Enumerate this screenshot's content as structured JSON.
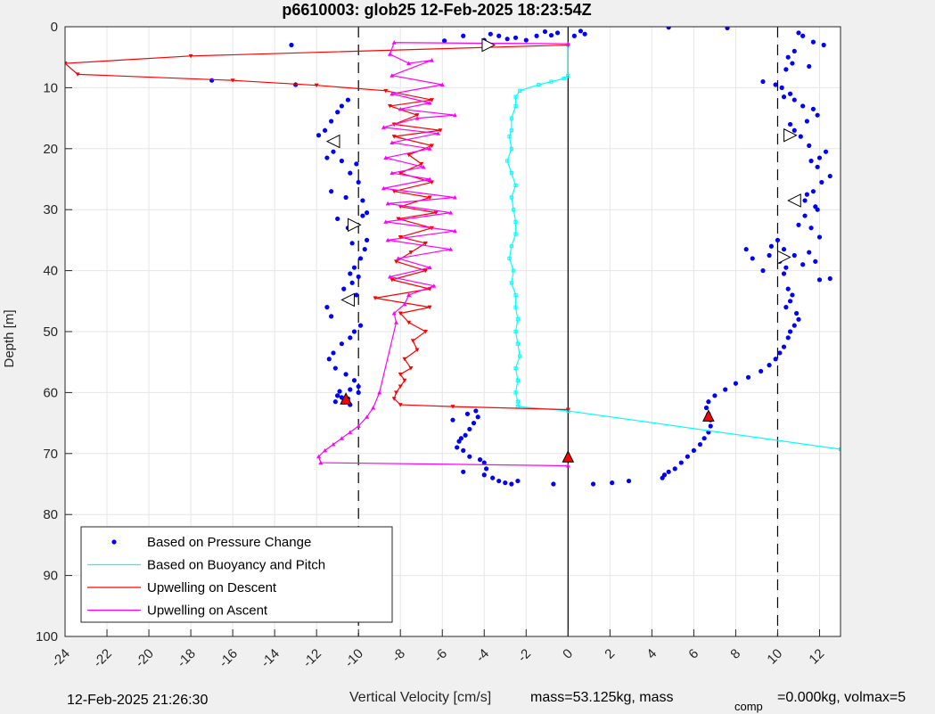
{
  "chart_data": {
    "type": "scatter",
    "title": "p6610003: glob25 12-Feb-2025 18:23:54Z",
    "xlabel": "Vertical Velocity [cm/s]",
    "ylabel": "Depth [m]",
    "xlim": [
      -24,
      13
    ],
    "ylim": [
      0,
      100
    ],
    "y_reversed": true,
    "x_ticks": [
      -24,
      -22,
      -20,
      -18,
      -16,
      -14,
      -12,
      -10,
      -8,
      -6,
      -4,
      -2,
      0,
      2,
      4,
      6,
      8,
      10,
      12
    ],
    "y_ticks": [
      0,
      10,
      20,
      30,
      40,
      50,
      60,
      70,
      80,
      90,
      100
    ],
    "grid": true,
    "legend_position": "bottom-left",
    "reference_lines": {
      "dashed_x": [
        -10,
        10
      ],
      "solid_x": [
        0
      ]
    },
    "series": [
      {
        "name": "Based on Pressure Change",
        "style": "markers",
        "color": "#0000ff",
        "x": [
          4.8,
          7.6,
          -13.2,
          -5.9,
          -5.0,
          -4.0,
          -3.7,
          -3.3,
          -2.9,
          -2.5,
          -2.0,
          -1.5,
          -1.1,
          -0.8,
          -0.5,
          0.3,
          0.6,
          0.8,
          -17.0,
          -13.0,
          -10.5,
          -10.8,
          -11.0,
          -11.3,
          -11.6,
          -11.9,
          -11.2,
          -11.5,
          -10.8,
          -10.1,
          -10.4,
          -10.0,
          -11.3,
          -10.6,
          -9.8,
          -9.6,
          -9.8,
          -10.2,
          -10.5,
          -11.0,
          -10.3,
          -9.6,
          -9.7,
          -9.9,
          -10.2,
          -10.4,
          -10.0,
          -10.3,
          -10.7,
          -10.1,
          -10.5,
          -11.5,
          -11.3,
          -9.9,
          -10.2,
          -10.4,
          -10.8,
          -11.2,
          -11.4,
          -11.1,
          -10.6,
          -10.2,
          -10.0,
          -10.4,
          -10.9,
          -11.0,
          -10.5,
          -10.0,
          -10.4,
          -10.7,
          -11.0,
          -11.1,
          -10.8,
          -5.5,
          -4.8,
          -4.4,
          -4.3,
          -4.5,
          -4.7,
          -4.9,
          -5.1,
          -5.2,
          -5.3,
          -5.0,
          -4.7,
          -4.2,
          -4.0,
          -3.9,
          -5.0,
          -4.0,
          -3.6,
          -3.3,
          -3.0,
          -2.7,
          -2.4,
          -0.7,
          1.2,
          2.1,
          2.9,
          11.0,
          11.2,
          11.7,
          12.2,
          10.8,
          10.5,
          10.7,
          11.5,
          10.4,
          9.3,
          9.9,
          10.2,
          10.6,
          10.3,
          10.8,
          11.2,
          11.7,
          11.9,
          11.4,
          10.6,
          10.8,
          11.1,
          11.5,
          12.3,
          12.0,
          11.6,
          11.9,
          12.5,
          12.1,
          11.7,
          11.4,
          11.3,
          11.8,
          11.9,
          11.3,
          11.0,
          11.6,
          12.0,
          10.0,
          9.7,
          10.3,
          10.8,
          11.5,
          10.1,
          8.5,
          8.8,
          10.4,
          11.2,
          11.8,
          9.6,
          10.3,
          12.0,
          12.5,
          9.3,
          10.5,
          10.7,
          10.6,
          10.4,
          10.9,
          11.0,
          10.8,
          10.6,
          10.5,
          10.3,
          10.1,
          9.9,
          9.6,
          9.2,
          8.6,
          8.0,
          7.5,
          7.0,
          6.7,
          6.6,
          6.7,
          6.8,
          6.8,
          6.7,
          6.5,
          6.3,
          6.0,
          5.7,
          5.4,
          5.1,
          4.8,
          4.6,
          4.5
        ],
        "y": [
          0.1,
          0.2,
          3.0,
          2.3,
          1.5,
          2.2,
          1.2,
          1.5,
          2.0,
          1.8,
          2.2,
          1.5,
          0.8,
          1.4,
          1.0,
          1.5,
          0.7,
          1.2,
          8.8,
          9.5,
          12.0,
          13.0,
          14.0,
          15.5,
          17.0,
          17.8,
          20.5,
          21.5,
          22.0,
          22.5,
          24.0,
          25.5,
          27.0,
          28.0,
          28.5,
          30.5,
          31.0,
          32.5,
          33.0,
          31.5,
          35.5,
          35.0,
          36.5,
          38.0,
          39.5,
          40.5,
          41.0,
          42.0,
          43.0,
          44.0,
          45.0,
          46.0,
          47.5,
          49.0,
          50.0,
          51.0,
          52.0,
          53.5,
          54.5,
          56.0,
          57.0,
          58.0,
          59.0,
          59.5,
          59.8,
          60.5,
          61.0,
          60.0,
          62.0,
          61.0,
          60.5,
          61.5,
          60.8,
          64.5,
          63.5,
          63.0,
          64.0,
          65.0,
          66.0,
          67.0,
          67.5,
          68.0,
          69.0,
          69.5,
          70.5,
          71.0,
          71.5,
          72.5,
          73.0,
          73.5,
          74.0,
          74.5,
          74.8,
          75.0,
          74.5,
          75.0,
          75.0,
          74.8,
          74.5,
          1.0,
          1.5,
          2.5,
          3.0,
          4.0,
          5.0,
          6.0,
          6.5,
          7.0,
          9.0,
          9.5,
          10.0,
          11.0,
          11.5,
          12.0,
          13.0,
          13.5,
          14.5,
          15.5,
          16.0,
          17.0,
          18.0,
          19.5,
          20.5,
          21.5,
          22.0,
          23.0,
          24.5,
          25.5,
          27.0,
          27.5,
          28.5,
          29.5,
          30.0,
          31.0,
          32.5,
          33.0,
          34.5,
          35.0,
          36.0,
          36.5,
          37.5,
          37.0,
          38.5,
          36.5,
          38.0,
          39.5,
          39.0,
          38.5,
          37.5,
          40.5,
          41.5,
          41.3,
          40.0,
          43.0,
          44.0,
          45.0,
          46.0,
          47.0,
          48.0,
          49.0,
          50.0,
          51.0,
          52.5,
          53.5,
          54.5,
          55.5,
          56.5,
          57.5,
          58.5,
          59.5,
          60.5,
          61.5,
          62.5,
          63.5,
          64.5,
          65.5,
          66.5,
          67.5,
          68.5,
          69.5,
          70.5,
          71.5,
          72.5,
          73.0,
          73.5,
          74.0
        ]
      },
      {
        "name": "Based on Buoyancy and Pitch",
        "style": "line+markers",
        "color": "#00ffff",
        "x": [
          0,
          0,
          -0.2,
          -0.8,
          -1.4,
          -2.3,
          -2.5,
          -2.5,
          -2.7,
          -2.7,
          -2.8,
          -2.7,
          -2.9,
          -2.7,
          -2.5,
          -2.7,
          -2.6,
          -2.5,
          -2.5,
          -2.7,
          -2.8,
          -2.6,
          -2.7,
          -2.5,
          -2.5,
          -2.4,
          -2.5,
          -2.4,
          -2.3,
          -2.5,
          -2.4,
          -2.5,
          -2.4,
          -2.4,
          0.0,
          13.0
        ],
        "y": [
          3.0,
          8.0,
          8.5,
          9.0,
          9.5,
          10.5,
          11.5,
          13.0,
          15.0,
          17.0,
          18.0,
          20.0,
          22.0,
          24.0,
          26.0,
          28.0,
          30.0,
          32.0,
          34.0,
          36.0,
          38.0,
          40.0,
          42.0,
          44.0,
          46.0,
          48.0,
          50.0,
          52.0,
          54.0,
          56.0,
          58.0,
          60.0,
          61.5,
          62.3,
          63.0,
          69.3
        ]
      },
      {
        "name": "Upwelling on Descent",
        "style": "line+markers",
        "color": "#ff0000",
        "x": [
          0,
          -18.0,
          -24.0,
          -23.4,
          -16.0,
          -12.0,
          -8.7,
          -6.5,
          -8.5,
          -7.2,
          -8.3,
          -6.1,
          -8.3,
          -6.5,
          -7.6,
          -7.0,
          -8.0,
          -6.5,
          -8.3,
          -6.6,
          -8.0,
          -6.3,
          -8.1,
          -6.5,
          -8.0,
          -6.8,
          -7.5,
          -8.2,
          -6.8,
          -8.4,
          -6.6,
          -9.2,
          -6.6,
          -8.0,
          -7.6,
          -6.8,
          -7.4,
          -7.2,
          -7.8,
          -7.5,
          -8.0,
          -7.8,
          -8.0,
          -8.2,
          -8.3,
          -8.0,
          -5.5,
          0
        ],
        "y": [
          3.0,
          4.8,
          6.0,
          7.8,
          8.8,
          9.6,
          10.5,
          12.0,
          13.0,
          14.5,
          16.0,
          17.0,
          18.0,
          19.5,
          21.0,
          22.5,
          24.0,
          25.5,
          27.0,
          28.0,
          29.5,
          30.5,
          31.5,
          33.0,
          34.5,
          35.5,
          37.0,
          38.5,
          40.0,
          41.5,
          43.0,
          44.5,
          46.0,
          47.0,
          48.5,
          50.0,
          51.5,
          53.0,
          54.5,
          56.0,
          57.0,
          58.0,
          59.0,
          60.0,
          61.0,
          62.0,
          62.3,
          62.8
        ]
      },
      {
        "name": "Upwelling on Ascent",
        "style": "line+markers",
        "color": "#ff00ff",
        "x": [
          0,
          -8.3,
          -8.5,
          -7.6,
          -6.5,
          -8.4,
          -6.0,
          -8.4,
          -6.6,
          -8.0,
          -5.4,
          -7.2,
          -8.8,
          -6.2,
          -8.4,
          -6.6,
          -8.7,
          -6.9,
          -8.4,
          -6.6,
          -8.8,
          -5.4,
          -8.6,
          -5.6,
          -8.7,
          -5.4,
          -8.6,
          -5.6,
          -8.1,
          -6.6,
          -8.5,
          -6.4,
          -7.6,
          -7.8,
          -8.3,
          -8.2,
          -9.0,
          -9.3,
          -9.6,
          -10.0,
          -10.4,
          -10.8,
          -11.2,
          -11.6,
          -11.9,
          -11.8,
          0
        ],
        "y": [
          2.8,
          2.6,
          4.5,
          6.0,
          5.5,
          8.0,
          9.5,
          11.0,
          12.5,
          13.5,
          14.5,
          15.0,
          16.5,
          17.5,
          19.0,
          20.0,
          21.5,
          23.0,
          24.0,
          25.0,
          26.5,
          28.0,
          29.0,
          30.5,
          32.0,
          33.5,
          35.0,
          36.5,
          38.0,
          39.5,
          41.0,
          42.5,
          44.0,
          45.5,
          47.0,
          48.5,
          60.0,
          62.5,
          64.0,
          65.5,
          66.5,
          67.5,
          68.5,
          69.5,
          70.5,
          71.5,
          72.0
        ]
      }
    ],
    "markers": {
      "open_triangles": [
        {
          "x": -3.8,
          "y": 3.0,
          "dir": "right"
        },
        {
          "x": -11.2,
          "y": 18.8,
          "dir": "left"
        },
        {
          "x": -10.2,
          "y": 32.5,
          "dir": "right"
        },
        {
          "x": -10.5,
          "y": 44.8,
          "dir": "left"
        },
        {
          "x": 10.6,
          "y": 17.8,
          "dir": "right"
        },
        {
          "x": 10.8,
          "y": 28.5,
          "dir": "left"
        },
        {
          "x": 10.3,
          "y": 37.8,
          "dir": "right"
        }
      ],
      "red_triangles": [
        {
          "x": -10.6,
          "y": 61.0
        },
        {
          "x": 6.7,
          "y": 63.8
        },
        {
          "x": 0.0,
          "y": 70.5
        }
      ]
    },
    "legend": [
      "Based on Pressure Change",
      "Based on Buoyancy and Pitch",
      "Upwelling on Descent",
      "Upwelling on Ascent"
    ]
  },
  "footer": {
    "timestamp": "12-Feb-2025 21:26:30",
    "mass_text": "mass=53.125kg, mass",
    "comp_subscript": "comp",
    "comp_text": "=0.000kg, volmax=5"
  }
}
